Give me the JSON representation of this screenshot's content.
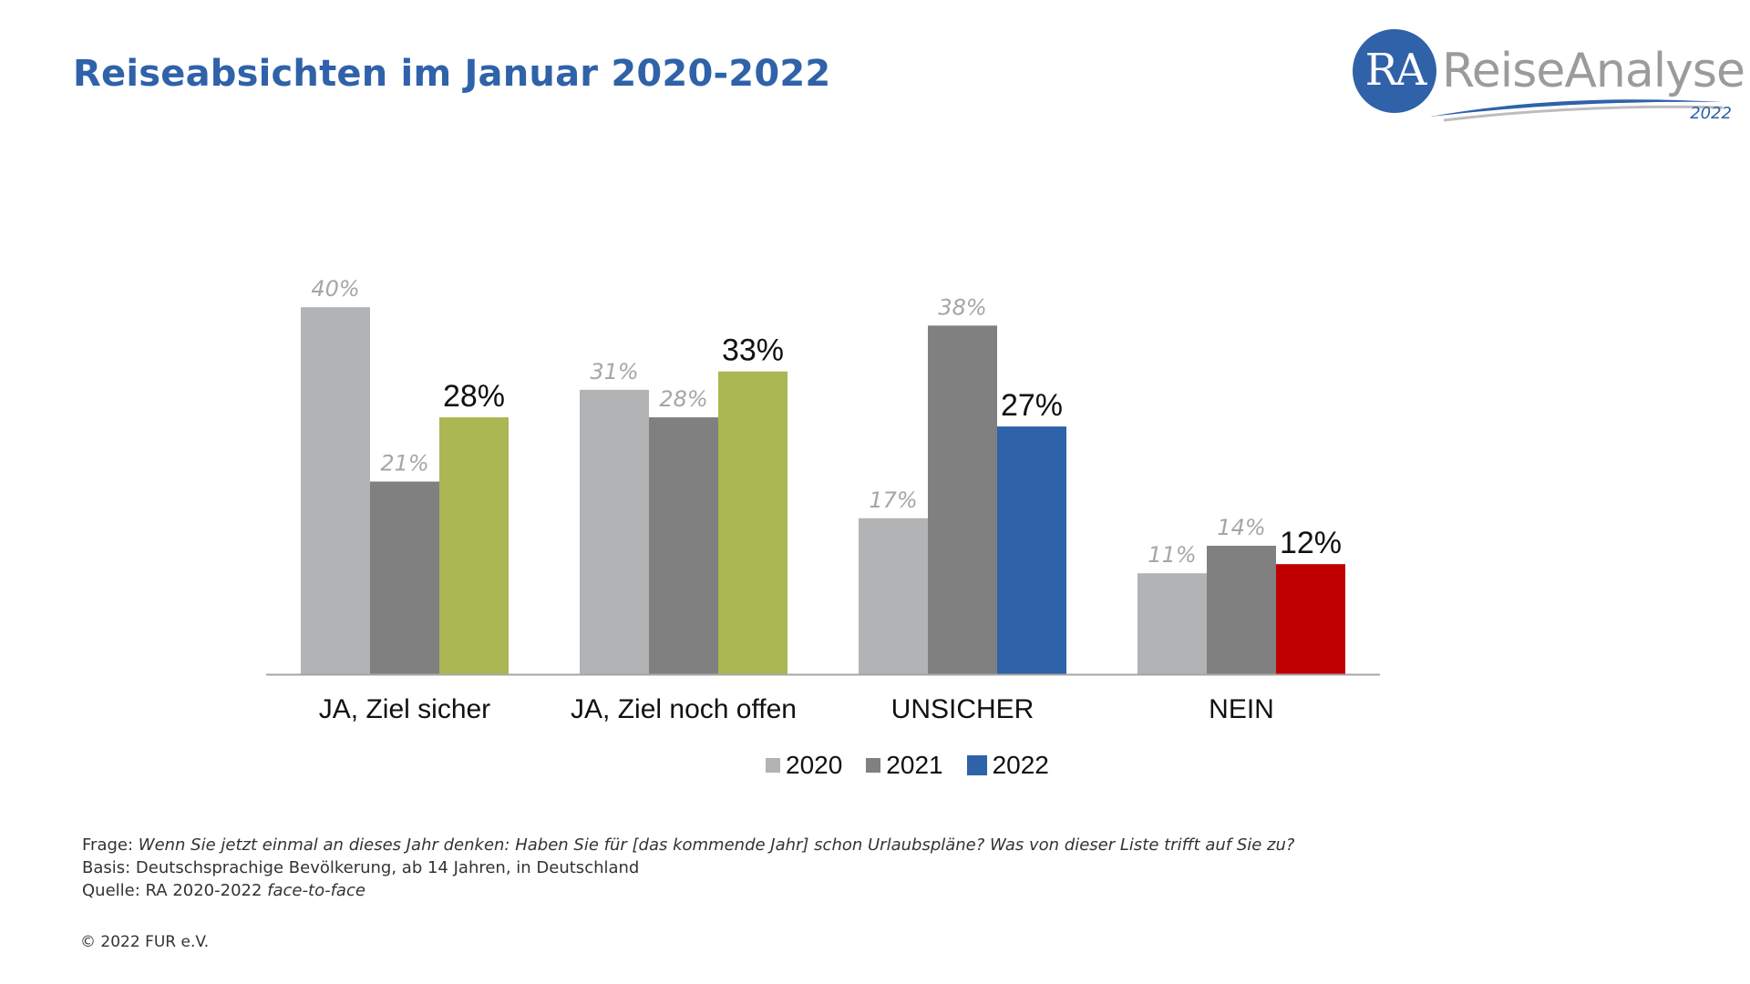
{
  "header": {
    "title": "Reiseabsichten im Januar 2020-2022"
  },
  "logo": {
    "mark": "RA",
    "brand": "ReiseAnalyse",
    "year": "2022",
    "circle_color": "#2f62a8"
  },
  "chart_data": {
    "type": "bar",
    "categories": [
      "JA, Ziel sicher",
      "JA, Ziel noch offen",
      "UNSICHER",
      "NEIN"
    ],
    "series": [
      {
        "name": "2020",
        "values": [
          40,
          31,
          17,
          11
        ],
        "color": "#b2b3b5"
      },
      {
        "name": "2021",
        "values": [
          21,
          28,
          38,
          14
        ],
        "color": "#808080"
      },
      {
        "name": "2022",
        "values": [
          28,
          33,
          27,
          12
        ],
        "colors": [
          "#abb752",
          "#abb752",
          "#2e62a9",
          "#c00000"
        ]
      }
    ],
    "value_suffix": "%",
    "ylim": [
      0,
      45
    ],
    "legend": "bottom-center",
    "grid": false
  },
  "legend_swatch_2022": "#2e62a9",
  "footnotes": {
    "frage_label": "Frage: ",
    "frage_text": "Wenn Sie jetzt einmal an dieses Jahr denken: Haben Sie für [das kommende Jahr] schon Urlaubspläne? Was von dieser Liste trifft auf Sie zu?",
    "basis": "Basis: Deutschsprachige Bevölkerung, ab 14 Jahren, in Deutschland",
    "quelle_label": "Quelle: RA 2020-2022 ",
    "quelle_method": "face-to-face"
  },
  "copyright": "© 2022 FUR e.V."
}
